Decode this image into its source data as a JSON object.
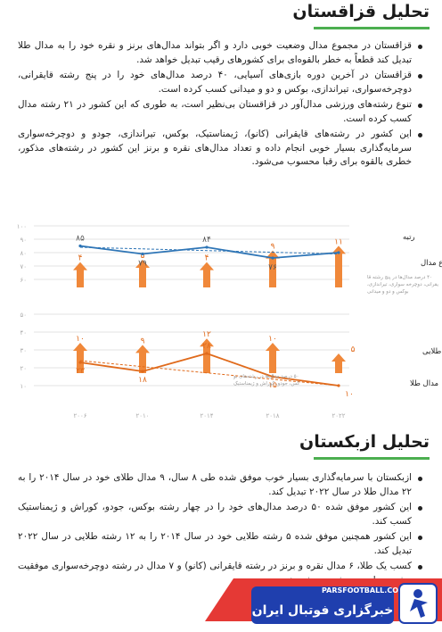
{
  "kazakhstan": {
    "title": "تحلیل قزاقستان",
    "bullets": [
      "قزاقستان در مجموع مدال وضعیت خوبی دارد و اگر بتواند مدال‌های برنز و نقره خود را به مدال طلا تبدیل کند قطعاً به خطر بالقوه‌ای برای کشورهای رقیب تبدیل خواهد شد.",
      "قزاقستان در آخرین دوره بازی‌های آسیایی، ۴۰ درصد مدال‌های خود را در پنج رشته قایقرانی، دوچرخه‌سواری، تیراندازی، بوکس و دو و میدانی کسب کرده است.",
      "تنوع رشته‌های ورزشی مدال‌آور در قزاقستان بی‌نظیر است، به طوری که این کشور در ۲۱ رشته مدال کسب کرده است.",
      "این کشور در رشته‌های قایقرانی (کانو)، ژیمناستیک، بوکس، تیراندازی، جودو و دوچرخه‌سواری سرمایه‌گذاری بسیار خوبی انجام داده و تعداد مدال‌های نقره و برنز این کشور در رشته‌های مذکور، خطری بالقوه برای رقبا محسوب می‌شود."
    ]
  },
  "chart_data": {
    "type": "line",
    "x": [
      "۲۰۰۶",
      "۲۰۱۰",
      "۲۰۱۴",
      "۲۰۱۸",
      "۲۰۲۲"
    ],
    "top": {
      "y_ticks": [
        "۱۰۰",
        "۹۰",
        "۸۰",
        "۷۰",
        "۶۰"
      ],
      "ylim": [
        60,
        100
      ],
      "series": [
        {
          "name": "مجموع مدال",
          "values": [
            85,
            79,
            84,
            76,
            80
          ],
          "labels": [
            "۸۵",
            "۷۹",
            "۸۴",
            "۷۶",
            ""
          ]
        },
        {
          "name": "رتبه",
          "values": [
            4,
            5,
            4,
            9,
            11
          ],
          "labels": [
            "۴",
            "۵",
            "۴",
            "۹",
            "۱۱"
          ]
        }
      ],
      "annotation": "۴۰ درصد مدال‌ها در پنج رشته قایقرانی، دوچرخه سواری، تیراندازی، بوکس و دو و میدانی"
    },
    "bottom": {
      "y_ticks": [
        "۵۰",
        "۴۰",
        "۳۰",
        "۲۰",
        "۱۰"
      ],
      "ylim": [
        10,
        50
      ],
      "series": [
        {
          "name": "رشته‌های طلایی",
          "values": [
            23,
            18,
            28,
            15,
            10
          ],
          "labels": [
            "۲۳",
            "۱۸",
            "۲۸",
            "۱۵",
            "۱۰"
          ]
        },
        {
          "name": "مدال طلا",
          "values": [
            10,
            9,
            12,
            10,
            5
          ],
          "labels": [
            "۱۰",
            "۹",
            "۱۲",
            "۱۰",
            "۵"
          ]
        }
      ],
      "annotation": "۵۰ درصد مدال‌ها در رشته‌های بوکس، جودو، کوراش و ژیمناستیک"
    },
    "colors": {
      "blue": "#2e75b6",
      "orange": "#e06a1b",
      "arrow": "#f0883a",
      "grid": "#e3e3e3"
    }
  },
  "uzbekistan": {
    "title": "تحلیل ازبکستان",
    "bullets": [
      "ازبکستان با سرمایه‌گذاری بسیار خوب موفق شده طی ۸ سال، ۹ مدال طلای خود در سال ۲۰۱۴ را به ۲۲ مدال طلا در سال ۲۰۲۲ تبدیل کند.",
      "این کشور موفق شده ۵۰ درصد مدال‌های خود را در چهار رشته بوکس، جودو، کوراش و ژیمناستیک کسب کند.",
      "این کشور همچنین موفق شده ۵ رشته طلایی خود در سال ۲۰۱۴ را به ۱۲ رشته طلایی در سال ۲۰۲۲ تبدیل کند.",
      "کسب یک طلا، ۶ مدال نقره و برنز در رشته قایقرانی (کانو) و ۷ مدال در رشته دوچرخه‌سواری موفقیت بیشتر در این دو رشته ورزشی خبر"
    ]
  },
  "footer": {
    "site": "PARSFOOTBALL.COM",
    "brand": "خبرگزاری فوتبال ایران"
  }
}
